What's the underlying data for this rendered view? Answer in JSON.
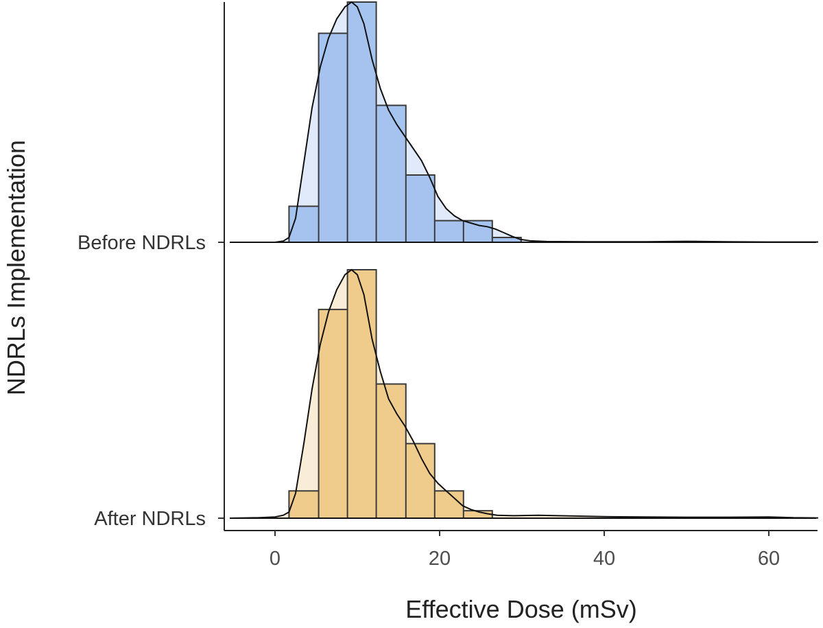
{
  "chart_data": {
    "type": "ridgeline-histogram",
    "xlabel": "Effective Dose (mSv)",
    "ylabel": "NDRLs Implementation",
    "xlim": [
      -6.5,
      66.5
    ],
    "xticks": [
      0,
      20,
      40,
      60
    ],
    "grid": false,
    "legend": "none",
    "bin_edges": [
      1.7,
      5.3,
      8.8,
      12.3,
      15.9,
      19.4,
      22.9,
      26.4,
      29.9
    ],
    "series": [
      {
        "name": "Before NDRLs",
        "color": "#a6c4f0",
        "bin_heights": [
          0.15,
          0.87,
          1.0,
          0.57,
          0.28,
          0.09,
          0.09,
          0.02
        ],
        "density": [
          [
            -5.5,
            0
          ],
          [
            0,
            0
          ],
          [
            1.0,
            0.005
          ],
          [
            1.7,
            0.02
          ],
          [
            2.5,
            0.1
          ],
          [
            3.5,
            0.33
          ],
          [
            4.5,
            0.56
          ],
          [
            5.5,
            0.73
          ],
          [
            6.5,
            0.85
          ],
          [
            7.5,
            0.93
          ],
          [
            8.5,
            0.98
          ],
          [
            9.3,
            1.0
          ],
          [
            10.0,
            0.98
          ],
          [
            10.8,
            0.91
          ],
          [
            11.8,
            0.76
          ],
          [
            12.8,
            0.64
          ],
          [
            13.8,
            0.55
          ],
          [
            14.8,
            0.49
          ],
          [
            15.8,
            0.44
          ],
          [
            16.8,
            0.39
          ],
          [
            17.8,
            0.34
          ],
          [
            18.8,
            0.27
          ],
          [
            19.8,
            0.19
          ],
          [
            20.8,
            0.14
          ],
          [
            21.8,
            0.11
          ],
          [
            22.8,
            0.09
          ],
          [
            23.8,
            0.08
          ],
          [
            24.8,
            0.07
          ],
          [
            25.8,
            0.065
          ],
          [
            26.8,
            0.055
          ],
          [
            27.8,
            0.04
          ],
          [
            28.8,
            0.025
          ],
          [
            29.8,
            0.012
          ],
          [
            31.0,
            0.006
          ],
          [
            33,
            0.003
          ],
          [
            38,
            0.002
          ],
          [
            45,
            0.002
          ],
          [
            50,
            0.004
          ],
          [
            55,
            0.002
          ],
          [
            60,
            0.001
          ],
          [
            66,
            0.001
          ]
        ]
      },
      {
        "name": "After NDRLs",
        "color": "#f0cc8c",
        "bin_heights": [
          0.11,
          0.84,
          1.0,
          0.54,
          0.3,
          0.11,
          0.03,
          0.0
        ],
        "density": [
          [
            -5.5,
            0
          ],
          [
            -2,
            0.002
          ],
          [
            0,
            0.005
          ],
          [
            1.0,
            0.012
          ],
          [
            1.7,
            0.025
          ],
          [
            2.5,
            0.1
          ],
          [
            3.5,
            0.3
          ],
          [
            4.5,
            0.52
          ],
          [
            5.5,
            0.7
          ],
          [
            6.5,
            0.83
          ],
          [
            7.5,
            0.92
          ],
          [
            8.5,
            0.98
          ],
          [
            9.3,
            1.0
          ],
          [
            10.0,
            0.98
          ],
          [
            10.8,
            0.9
          ],
          [
            11.8,
            0.72
          ],
          [
            12.8,
            0.59
          ],
          [
            13.8,
            0.48
          ],
          [
            14.8,
            0.42
          ],
          [
            15.8,
            0.37
          ],
          [
            16.8,
            0.31
          ],
          [
            17.8,
            0.24
          ],
          [
            18.8,
            0.18
          ],
          [
            19.8,
            0.14
          ],
          [
            20.8,
            0.11
          ],
          [
            21.8,
            0.08
          ],
          [
            22.8,
            0.05
          ],
          [
            23.8,
            0.035
          ],
          [
            24.8,
            0.025
          ],
          [
            25.8,
            0.018
          ],
          [
            27,
            0.012
          ],
          [
            29,
            0.01
          ],
          [
            32,
            0.012
          ],
          [
            36,
            0.009
          ],
          [
            40,
            0.006
          ],
          [
            45,
            0.005
          ],
          [
            50,
            0.004
          ],
          [
            55,
            0.004
          ],
          [
            60,
            0.005
          ],
          [
            63,
            0.002
          ],
          [
            66,
            0.001
          ]
        ]
      }
    ]
  }
}
